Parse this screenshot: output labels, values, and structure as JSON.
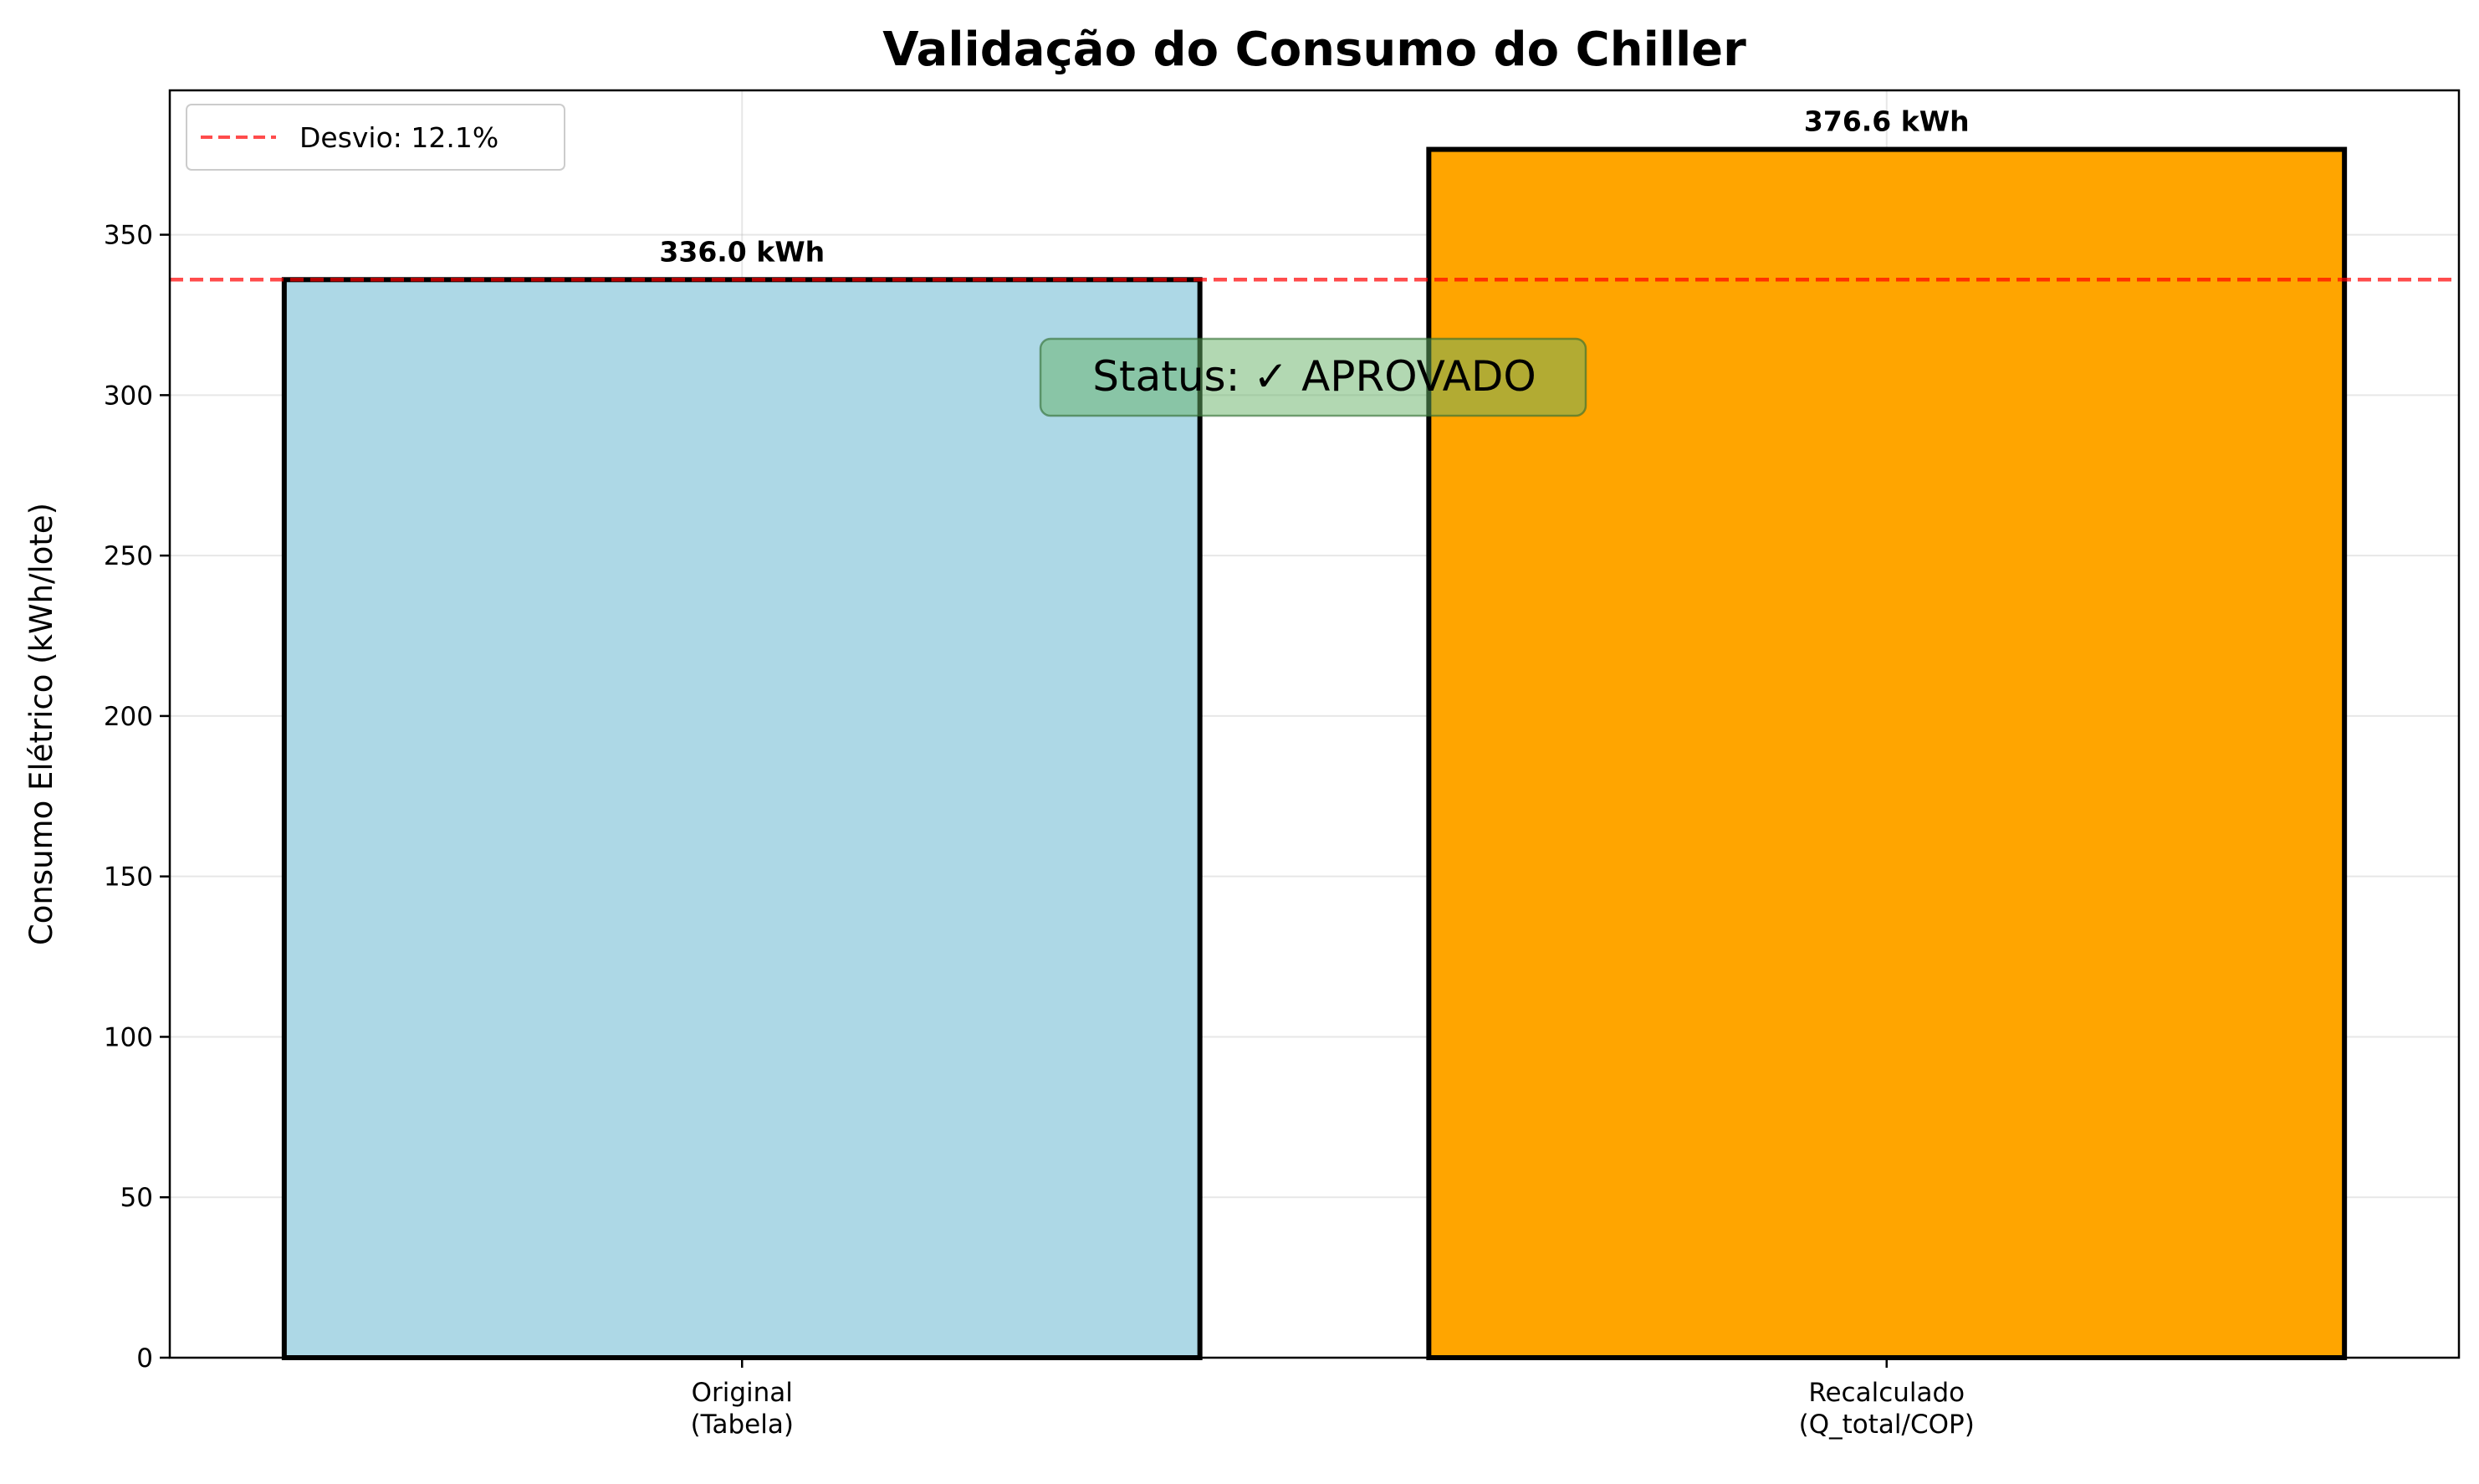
{
  "chart_data": {
    "type": "bar",
    "title": "Validação do Consumo do Chiller",
    "xlabel": "",
    "ylabel": "Consumo Elétrico (kWh/lote)",
    "categories": [
      [
        "Original",
        "(Tabela)"
      ],
      [
        "Recalculado",
        "(Q_total/COP)"
      ]
    ],
    "values": [
      336.0,
      376.6
    ],
    "value_labels": [
      "336.0 kWh",
      "376.6 kWh"
    ],
    "bar_colors": [
      "#add8e6",
      "#ffa500"
    ],
    "edge_color": "#000000",
    "ylim": [
      0,
      395
    ],
    "yticks": [
      0,
      50,
      100,
      150,
      200,
      250,
      300,
      350
    ],
    "grid": true,
    "reference_line": {
      "value": 336.0,
      "color": "#ff0000",
      "style": "dashed",
      "label": "Desvio: 12.1%"
    },
    "legend": {
      "position": "top-left",
      "entries": [
        "Desvio: 12.1%"
      ]
    },
    "annotation": {
      "text": "Status: ✓ APROVADO",
      "box_color": "#66b266"
    }
  }
}
